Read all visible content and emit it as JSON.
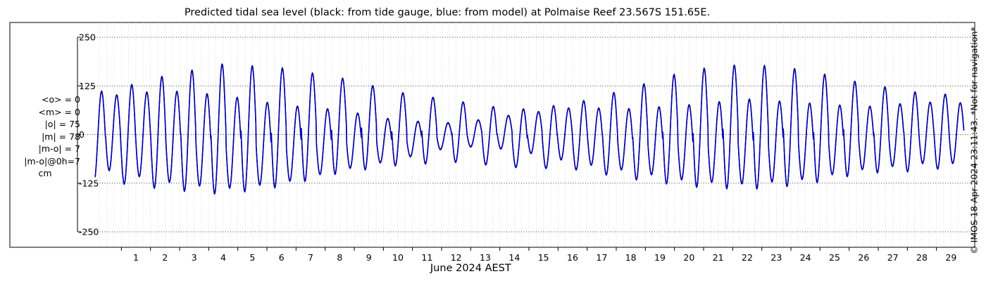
{
  "chart_data": {
    "type": "line",
    "title": "Predicted tidal sea level (black: from tide gauge, blue: from model) at Polmaise Reef 23.567S 151.65E.",
    "xlabel": "June 2024 AEST",
    "ylabel": "",
    "x_ticks": [
      "1",
      "2",
      "3",
      "4",
      "5",
      "6",
      "7",
      "8",
      "9",
      "10",
      "11",
      "12",
      "13",
      "14",
      "15",
      "16",
      "17",
      "18",
      "19",
      "20",
      "21",
      "22",
      "23",
      "24",
      "25",
      "26",
      "27",
      "28",
      "29"
    ],
    "y_ticks": [
      250,
      125,
      0,
      -125,
      -250
    ],
    "xlim_days": [
      0,
      30
    ],
    "ylim": [
      -250,
      250
    ],
    "grid": true,
    "series": [
      {
        "name": "tide gauge",
        "color": "#000000"
      },
      {
        "name": "model",
        "color": "#0000cc"
      }
    ],
    "daily_tides": [
      {
        "day": 0.5,
        "high_major": 110,
        "high_minor": 98,
        "low_major": -122,
        "low_minor": -92
      },
      {
        "day": 2.5,
        "high_major": 150,
        "high_minor": 112,
        "low_major": -142,
        "low_minor": -122
      },
      {
        "day": 4.5,
        "high_major": 180,
        "high_minor": 100,
        "low_major": -155,
        "low_minor": -140
      },
      {
        "day": 6.5,
        "high_major": 170,
        "high_minor": 75,
        "low_major": -135,
        "low_minor": -125
      },
      {
        "day": 8.5,
        "high_major": 145,
        "high_minor": 62,
        "low_major": -100,
        "low_minor": -92
      },
      {
        "day": 10.5,
        "high_major": 108,
        "high_minor": 35,
        "low_major": -80,
        "low_minor": -65
      },
      {
        "day": 12.5,
        "high_major": 85,
        "high_minor": 28,
        "low_major": -72,
        "low_minor": -30
      },
      {
        "day": 14.5,
        "high_major": 62,
        "high_minor": 50,
        "low_major": -85,
        "low_minor": -40
      },
      {
        "day": 16.5,
        "high_major": 78,
        "high_minor": 68,
        "low_major": -90,
        "low_minor": -72
      },
      {
        "day": 18.5,
        "high_major": 118,
        "high_minor": 65,
        "low_major": -115,
        "low_minor": -95
      },
      {
        "day": 20.5,
        "high_major": 165,
        "high_minor": 75,
        "low_major": -135,
        "low_minor": -120
      },
      {
        "day": 22.5,
        "high_major": 180,
        "high_minor": 90,
        "low_major": -142,
        "low_minor": -128
      },
      {
        "day": 24.5,
        "high_major": 165,
        "high_minor": 80,
        "low_major": -130,
        "low_minor": -115
      },
      {
        "day": 26.5,
        "high_major": 130,
        "high_minor": 70,
        "low_major": -100,
        "low_minor": -90
      },
      {
        "day": 28.5,
        "high_major": 105,
        "high_minor": 82,
        "low_major": -95,
        "low_minor": -75
      },
      {
        "day": 29.9,
        "high_major": 100,
        "high_minor": 80,
        "low_major": -80,
        "low_minor": -75
      }
    ]
  },
  "stats": {
    "mean_obs": "<o> = 0",
    "mean_model": "<m> = 0",
    "abs_obs": "|o| = 75",
    "abs_model": "|m| = 78",
    "abs_diff": "|m-o| = 7",
    "abs_diff_lag": "|m-o|@0h=7",
    "unit": "cm"
  },
  "credit": "© IMOS 18-Apr-2024 23:11:43. *Not for navigation*"
}
